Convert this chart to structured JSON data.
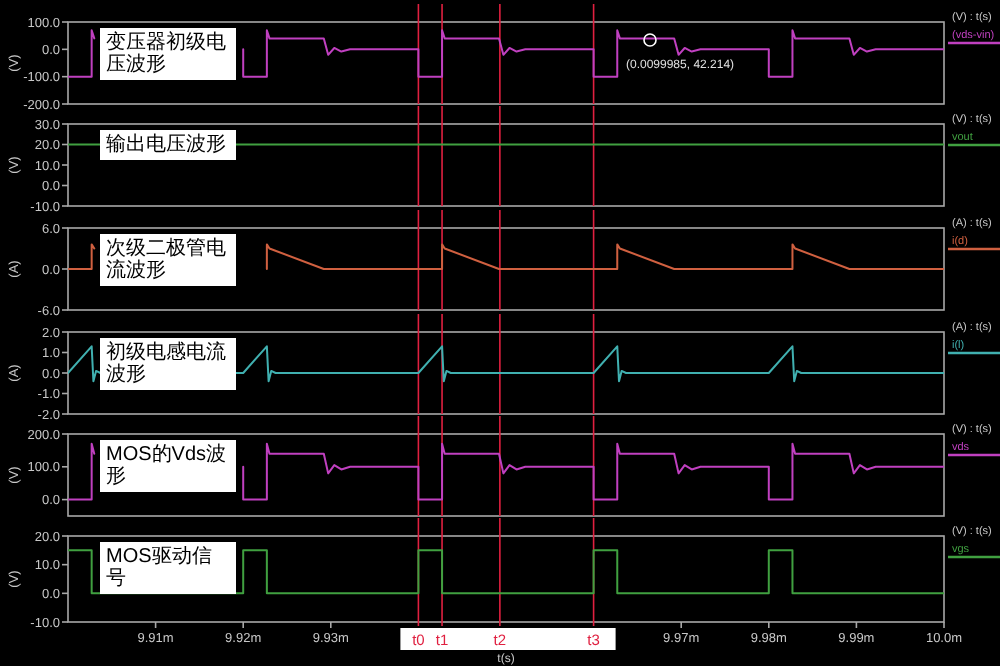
{
  "chart_data": [
    {
      "type": "line",
      "ylabel": "(V)",
      "legend_title": "(V) : t(s)",
      "legend": "right",
      "tick_labels": "y",
      "xlim": [
        9.9,
        10.0
      ],
      "ylim": [
        -200,
        100
      ],
      "yticks": [
        {
          "value": 100,
          "label": "100.0"
        },
        {
          "value": 0,
          "label": "0.0"
        },
        {
          "value": -100,
          "label": "-100.0"
        },
        {
          "value": -200,
          "label": "-200.0"
        }
      ],
      "series": [
        {
          "name": "(vds-vin)",
          "color": "#c040c0",
          "x": [
            9.9,
            9.9027,
            9.9027,
            9.903,
            9.9092,
            9.9097,
            9.9104,
            9.9112,
            9.9122,
            9.92,
            9.92,
            9.9227,
            9.9227,
            9.923,
            9.9292,
            9.9297,
            9.9304,
            9.9312,
            9.9322,
            9.94,
            9.94,
            9.9427,
            9.9427,
            9.943,
            9.9492,
            9.9497,
            9.9504,
            9.9512,
            9.9522,
            9.96,
            9.96,
            9.9627,
            9.9627,
            9.963,
            9.9692,
            9.9697,
            9.9704,
            9.9712,
            9.9722,
            9.98,
            9.98,
            9.9827,
            9.9827,
            9.983,
            9.9892,
            9.9897,
            9.9904,
            9.9912,
            9.9922,
            10.0
          ],
          "values": [
            -100,
            -100,
            70,
            40,
            null,
            null,
            null,
            null,
            null,
            0,
            -100,
            -100,
            70,
            40,
            40,
            -20,
            5,
            -8,
            0,
            0,
            -100,
            -100,
            70,
            40,
            40,
            -20,
            5,
            -8,
            0,
            0,
            -100,
            -100,
            70,
            40,
            40,
            -20,
            5,
            -8,
            0,
            0,
            -100,
            -100,
            70,
            40,
            40,
            -20,
            5,
            -8,
            0,
            0
          ]
        }
      ],
      "ref_lines": [
        {
          "axis": "x",
          "value": 9.94,
          "color": "#e02040"
        },
        {
          "axis": "x",
          "value": 9.9427,
          "color": "#e02040"
        },
        {
          "axis": "x",
          "value": 9.9493,
          "color": "#e02040"
        },
        {
          "axis": "x",
          "value": 9.96,
          "color": "#e02040"
        }
      ],
      "annotations": [
        "变压器初级电压波形",
        "(0.0099985, 42.214)"
      ]
    },
    {
      "type": "line",
      "ylabel": "(V)",
      "legend_title": "(V) : t(s)",
      "legend": "right",
      "tick_labels": "y",
      "xlim": [
        9.9,
        10.0
      ],
      "ylim": [
        -10,
        30
      ],
      "yticks": [
        {
          "value": 30,
          "label": "30.0"
        },
        {
          "value": 20,
          "label": "20.0"
        },
        {
          "value": 10,
          "label": "10.0"
        },
        {
          "value": 0,
          "label": "0.0"
        },
        {
          "value": -10,
          "label": "-10.0"
        }
      ],
      "series": [
        {
          "name": "vout",
          "color": "#40a040",
          "x": [
            9.9,
            10.0
          ],
          "values": [
            20,
            20
          ]
        }
      ],
      "ref_lines": [
        {
          "axis": "x",
          "value": 9.94,
          "color": "#e02040"
        },
        {
          "axis": "x",
          "value": 9.9427,
          "color": "#e02040"
        },
        {
          "axis": "x",
          "value": 9.9493,
          "color": "#e02040"
        },
        {
          "axis": "x",
          "value": 9.96,
          "color": "#e02040"
        }
      ],
      "annotations": [
        "输出电压波形"
      ]
    },
    {
      "type": "line",
      "ylabel": "(A)",
      "legend_title": "(A) : t(s)",
      "legend": "right",
      "tick_labels": "y",
      "xlim": [
        9.9,
        10.0
      ],
      "ylim": [
        -6,
        6
      ],
      "yticks": [
        {
          "value": 6,
          "label": "6.0"
        },
        {
          "value": 0,
          "label": "0.0"
        },
        {
          "value": -6,
          "label": "-6.0"
        }
      ],
      "series": [
        {
          "name": "i(d)",
          "color": "#d06040",
          "x": [
            9.9,
            9.9027,
            9.9027,
            9.903,
            9.9092,
            9.9227,
            9.9227,
            9.923,
            9.9292,
            9.9427,
            9.9427,
            9.943,
            9.9492,
            9.9627,
            9.9627,
            9.963,
            9.9692,
            9.9827,
            9.9827,
            9.983,
            9.9892,
            10.0
          ],
          "values": [
            0,
            0,
            3.6,
            3.0,
            null,
            0,
            3.6,
            3.0,
            0,
            0,
            3.6,
            3.0,
            0,
            0,
            3.6,
            3.0,
            0,
            0,
            3.6,
            3.0,
            0,
            0
          ]
        }
      ],
      "ref_lines": [
        {
          "axis": "x",
          "value": 9.94,
          "color": "#e02040"
        },
        {
          "axis": "x",
          "value": 9.9427,
          "color": "#e02040"
        },
        {
          "axis": "x",
          "value": 9.9493,
          "color": "#e02040"
        },
        {
          "axis": "x",
          "value": 9.96,
          "color": "#e02040"
        }
      ],
      "annotations": [
        "次级二极管电流波形"
      ]
    },
    {
      "type": "line",
      "ylabel": "(A)",
      "legend_title": "(A) : t(s)",
      "legend": "right",
      "tick_labels": "y",
      "xlim": [
        9.9,
        10.0
      ],
      "ylim": [
        -2,
        2
      ],
      "yticks": [
        {
          "value": 2,
          "label": "2.0"
        },
        {
          "value": 1,
          "label": "1.0"
        },
        {
          "value": 0,
          "label": "0.0"
        },
        {
          "value": -1,
          "label": "-1.0"
        },
        {
          "value": -2,
          "label": "-2.0"
        }
      ],
      "series": [
        {
          "name": "i(l)",
          "color": "#40b0b0",
          "x": [
            9.9,
            9.9027,
            9.9029,
            9.9032,
            9.9037,
            9.92,
            9.9227,
            9.9229,
            9.9232,
            9.9237,
            9.94,
            9.9427,
            9.9429,
            9.9432,
            9.9437,
            9.96,
            9.9627,
            9.9629,
            9.9632,
            9.9637,
            9.98,
            9.9827,
            9.9829,
            9.9832,
            9.9837,
            10.0
          ],
          "values": [
            0,
            1.3,
            -0.4,
            0.1,
            0,
            0,
            1.3,
            -0.4,
            0.1,
            0,
            0,
            1.3,
            -0.4,
            0.1,
            0,
            0,
            1.3,
            -0.4,
            0.1,
            0,
            0,
            1.3,
            -0.4,
            0.1,
            0,
            0
          ]
        }
      ],
      "ref_lines": [
        {
          "axis": "x",
          "value": 9.94,
          "color": "#e02040"
        },
        {
          "axis": "x",
          "value": 9.9427,
          "color": "#e02040"
        },
        {
          "axis": "x",
          "value": 9.9493,
          "color": "#e02040"
        },
        {
          "axis": "x",
          "value": 9.96,
          "color": "#e02040"
        }
      ],
      "annotations": [
        "初级电感电流波形"
      ]
    },
    {
      "type": "line",
      "ylabel": "(V)",
      "legend_title": "(V) : t(s)",
      "legend": "right",
      "tick_labels": "y",
      "xlim": [
        9.9,
        10.0
      ],
      "ylim": [
        -50,
        200
      ],
      "yticks": [
        {
          "value": 200,
          "label": "200.0"
        },
        {
          "value": 100,
          "label": "100.0"
        },
        {
          "value": 0,
          "label": "0.0"
        }
      ],
      "series": [
        {
          "name": "vds",
          "color": "#c040c0",
          "x": [
            9.9,
            9.9027,
            9.9027,
            9.903,
            9.9092,
            9.9097,
            9.9104,
            9.9112,
            9.9122,
            9.92,
            9.92,
            9.9227,
            9.9227,
            9.923,
            9.9292,
            9.9297,
            9.9304,
            9.9312,
            9.9322,
            9.94,
            9.94,
            9.9427,
            9.9427,
            9.943,
            9.9492,
            9.9497,
            9.9504,
            9.9512,
            9.9522,
            9.96,
            9.96,
            9.9627,
            9.9627,
            9.963,
            9.9692,
            9.9697,
            9.9704,
            9.9712,
            9.9722,
            9.98,
            9.98,
            9.9827,
            9.9827,
            9.983,
            9.9892,
            9.9897,
            9.9904,
            9.9912,
            9.9922,
            10.0
          ],
          "values": [
            0,
            0,
            170,
            140,
            null,
            null,
            null,
            null,
            null,
            100,
            0,
            0,
            170,
            140,
            140,
            80,
            105,
            92,
            100,
            100,
            0,
            0,
            170,
            140,
            140,
            80,
            105,
            92,
            100,
            100,
            0,
            0,
            170,
            140,
            140,
            80,
            105,
            92,
            100,
            100,
            0,
            0,
            170,
            140,
            140,
            80,
            105,
            92,
            100,
            100
          ]
        }
      ],
      "ref_lines": [
        {
          "axis": "x",
          "value": 9.94,
          "color": "#e02040"
        },
        {
          "axis": "x",
          "value": 9.9427,
          "color": "#e02040"
        },
        {
          "axis": "x",
          "value": 9.9493,
          "color": "#e02040"
        },
        {
          "axis": "x",
          "value": 9.96,
          "color": "#e02040"
        }
      ],
      "annotations": [
        "MOS的Vds波形"
      ]
    },
    {
      "type": "line",
      "ylabel": "(V)",
      "legend_title": "(V) : t(s)",
      "legend": "right",
      "xlabel": "t(s)",
      "xlim": [
        9.9,
        10.0
      ],
      "xticks": [
        {
          "value": 9.91,
          "label": "9.91m"
        },
        {
          "value": 9.92,
          "label": "9.92m"
        },
        {
          "value": 9.93,
          "label": "9.93m"
        },
        {
          "value": 9.97,
          "label": "9.97m"
        },
        {
          "value": 9.98,
          "label": "9.98m"
        },
        {
          "value": 9.99,
          "label": "9.99m"
        },
        {
          "value": 10.0,
          "label": "10.0m"
        }
      ],
      "ylim": [
        -10,
        20
      ],
      "yticks": [
        {
          "value": 20,
          "label": "20.0"
        },
        {
          "value": 10,
          "label": "10.0"
        },
        {
          "value": 0,
          "label": "0.0"
        },
        {
          "value": -10,
          "label": "-10.0"
        }
      ],
      "series": [
        {
          "name": "vgs",
          "color": "#40a040",
          "x": [
            9.9,
            9.9027,
            9.9027,
            9.92,
            9.92,
            9.9227,
            9.9227,
            9.94,
            9.94,
            9.9427,
            9.9427,
            9.96,
            9.96,
            9.9627,
            9.9627,
            9.98,
            9.98,
            9.9827,
            9.9827,
            10.0
          ],
          "values": [
            15,
            15,
            0,
            0,
            15,
            15,
            0,
            0,
            15,
            15,
            0,
            0,
            15,
            15,
            0,
            0,
            15,
            15,
            0,
            0
          ]
        }
      ],
      "ref_lines": [
        {
          "axis": "x",
          "value": 9.94,
          "label": "t0",
          "color": "#e02040"
        },
        {
          "axis": "x",
          "value": 9.9427,
          "label": "t1",
          "color": "#e02040"
        },
        {
          "axis": "x",
          "value": 9.9493,
          "label": "t2",
          "color": "#e02040"
        },
        {
          "axis": "x",
          "value": 9.96,
          "label": "t3",
          "color": "#e02040"
        }
      ],
      "annotations": [
        "MOS驱动信号"
      ]
    }
  ]
}
